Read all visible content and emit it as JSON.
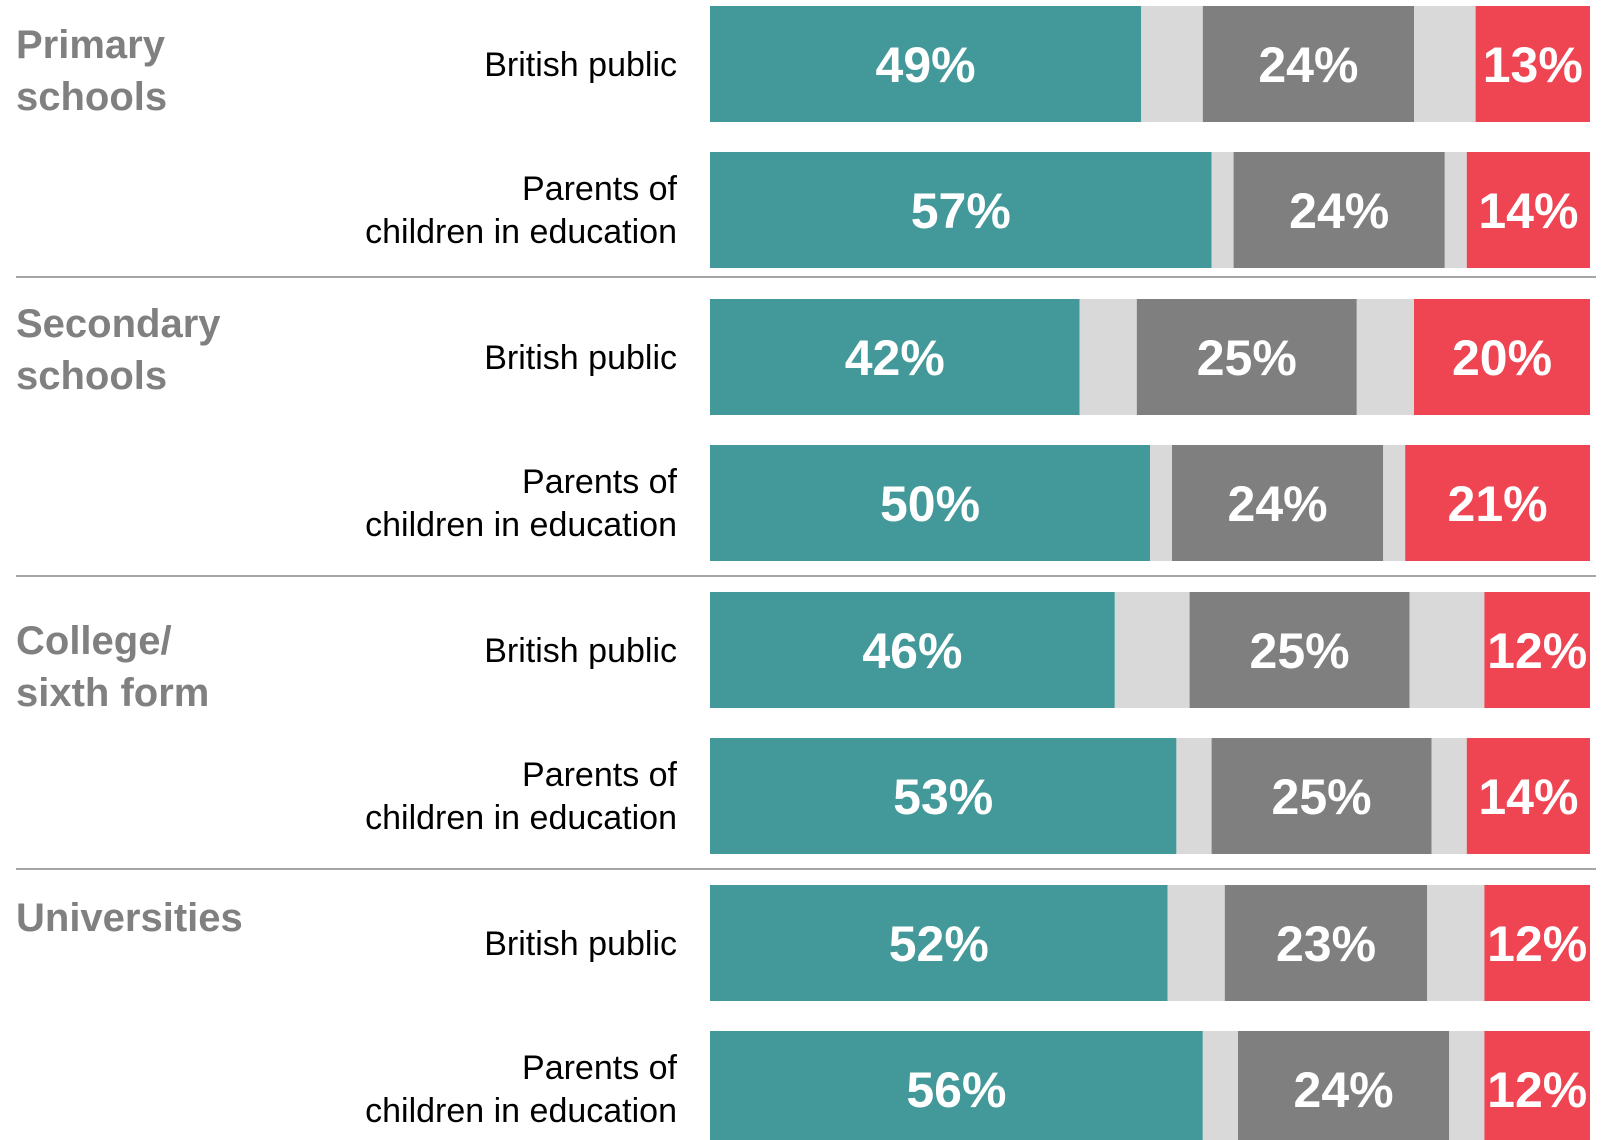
{
  "colors": {
    "segment_1": "#43999A",
    "gap_1": "#D9D9D9",
    "segment_2": "#7F7F7F",
    "gap_2": "#D9D9D9",
    "segment_3": "#EF4452",
    "divider": "#A6A6A6",
    "group_title": "#808080"
  },
  "chart_data": {
    "type": "bar",
    "orientation": "horizontal",
    "stacked": true,
    "xlim": [
      0,
      100
    ],
    "series_order": [
      "segment_1",
      "gap_1",
      "segment_2",
      "gap_2",
      "segment_3"
    ],
    "groups": [
      {
        "title_lines": [
          "Primary",
          "schools"
        ],
        "rows": [
          {
            "label_lines": [
              "British public"
            ],
            "values": [
              49,
              24,
              13
            ],
            "value_labels": [
              "49%",
              "24%",
              "13%"
            ]
          },
          {
            "label_lines": [
              "Parents of",
              "children in education"
            ],
            "values": [
              57,
              24,
              14
            ],
            "value_labels": [
              "57%",
              "24%",
              "14%"
            ]
          }
        ]
      },
      {
        "title_lines": [
          "Secondary",
          "schools"
        ],
        "rows": [
          {
            "label_lines": [
              "British public"
            ],
            "values": [
              42,
              25,
              20
            ],
            "value_labels": [
              "42%",
              "25%",
              "20%"
            ]
          },
          {
            "label_lines": [
              "Parents of",
              "children in education"
            ],
            "values": [
              50,
              24,
              21
            ],
            "value_labels": [
              "50%",
              "24%",
              "21%"
            ]
          }
        ]
      },
      {
        "title_lines": [
          "College/",
          "sixth form"
        ],
        "rows": [
          {
            "label_lines": [
              "British public"
            ],
            "values": [
              46,
              25,
              12
            ],
            "value_labels": [
              "46%",
              "25%",
              "12%"
            ]
          },
          {
            "label_lines": [
              "Parents of",
              "children in education"
            ],
            "values": [
              53,
              25,
              14
            ],
            "value_labels": [
              "53%",
              "25%",
              "14%"
            ]
          }
        ]
      },
      {
        "title_lines": [
          "Universities"
        ],
        "rows": [
          {
            "label_lines": [
              "British public"
            ],
            "values": [
              52,
              23,
              12
            ],
            "value_labels": [
              "52%",
              "23%",
              "12%"
            ]
          },
          {
            "label_lines": [
              "Parents of",
              "children in education"
            ],
            "values": [
              56,
              24,
              12
            ],
            "value_labels": [
              "56%",
              "24%",
              "12%"
            ]
          }
        ]
      }
    ]
  }
}
